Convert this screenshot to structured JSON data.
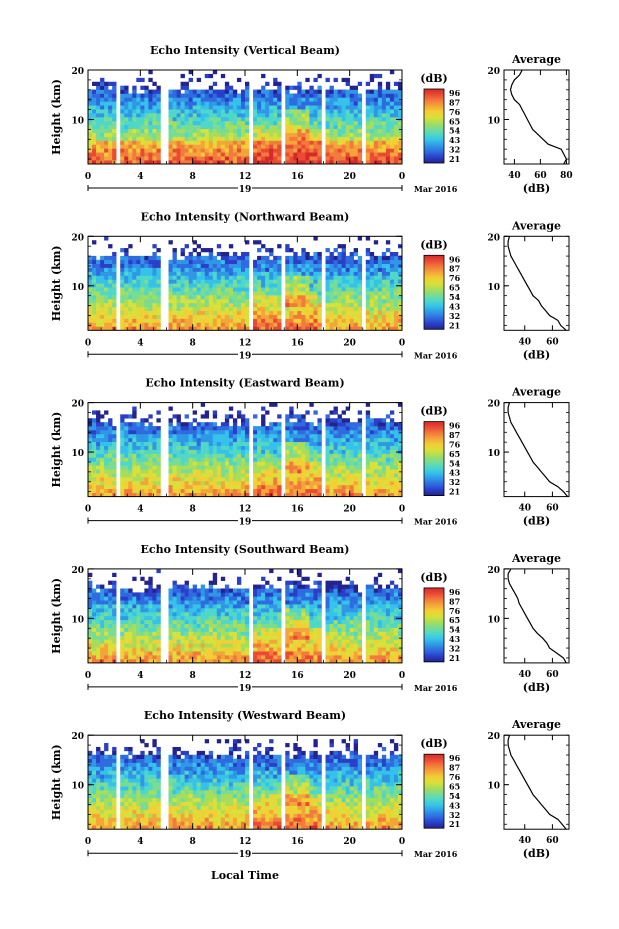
{
  "figure": {
    "month_label": "Mar 2016",
    "day_label": "19",
    "bottom_xlabel": "Local Time"
  },
  "colorbar": {
    "unit": "(dB)",
    "ticks": [
      "96",
      "87",
      "76",
      "65",
      "54",
      "43",
      "32",
      "21"
    ],
    "colors": [
      "#23238f",
      "#2a3fc8",
      "#2f6be0",
      "#2f97e6",
      "#35c2ea",
      "#4fd7c8",
      "#78dc92",
      "#a8dd5a",
      "#d8e03a",
      "#f2cf34",
      "#f4a53a",
      "#f27a3c",
      "#ea4a34",
      "#d42a2a"
    ]
  },
  "chart_data": [
    {
      "type": "heatmap",
      "title": "Echo Intensity (Vertical Beam)",
      "xlabel": "",
      "ylabel": "Height (km)",
      "xlim": [
        0,
        24
      ],
      "ylim": [
        1,
        20
      ],
      "xticks": [
        "0",
        "4",
        "8",
        "12",
        "16",
        "20",
        "0"
      ],
      "yticks": [
        "10",
        "20"
      ],
      "colorbar_range_db": [
        21,
        96
      ],
      "data_gaps_hours": [
        [
          2.2,
          2.5
        ],
        [
          5.5,
          6.1
        ],
        [
          12.3,
          12.5
        ],
        [
          14.8,
          15.1
        ],
        [
          18.0,
          18.3
        ],
        [
          21.0,
          21.3
        ]
      ],
      "profile": {
        "title": "Average",
        "xlabel": "(dB)",
        "ylabel": "",
        "xticks": [
          "40",
          "60",
          "80"
        ],
        "xlim": [
          32,
          82
        ],
        "ylim": [
          1,
          20
        ],
        "yticks": [
          "10",
          "20"
        ],
        "height_km": [
          1,
          2,
          3,
          4,
          5,
          6,
          7,
          8,
          9,
          10,
          11,
          12,
          13,
          14,
          15,
          16,
          17,
          18,
          19,
          20
        ],
        "value_db": [
          78,
          80,
          78,
          76,
          66,
          62,
          58,
          54,
          52,
          50,
          48,
          46,
          44,
          40,
          38,
          37,
          38,
          40,
          44,
          46
        ]
      }
    },
    {
      "type": "heatmap",
      "title": "Echo Intensity (Northward Beam)",
      "xlabel": "",
      "ylabel": "Height (km)",
      "xlim": [
        0,
        24
      ],
      "ylim": [
        1,
        20
      ],
      "xticks": [
        "0",
        "4",
        "8",
        "12",
        "16",
        "20",
        "0"
      ],
      "yticks": [
        "10",
        "20"
      ],
      "colorbar_range_db": [
        21,
        96
      ],
      "data_gaps_hours": [
        [
          2.2,
          2.5
        ],
        [
          5.5,
          6.1
        ],
        [
          12.3,
          12.5
        ],
        [
          14.8,
          15.1
        ],
        [
          18.0,
          18.3
        ],
        [
          21.0,
          21.3
        ]
      ],
      "profile": {
        "title": "Average",
        "xlabel": "(dB)",
        "ylabel": "",
        "xticks": [
          "40",
          "60"
        ],
        "xlim": [
          25,
          72
        ],
        "ylim": [
          1,
          20
        ],
        "yticks": [
          "10",
          "20"
        ],
        "height_km": [
          1,
          2,
          3,
          4,
          5,
          6,
          7,
          8,
          9,
          10,
          11,
          12,
          13,
          14,
          15,
          16,
          17,
          18,
          19,
          20
        ],
        "value_db": [
          70,
          66,
          64,
          58,
          55,
          52,
          50,
          46,
          44,
          42,
          40,
          38,
          36,
          34,
          32,
          30,
          29,
          28,
          28,
          29
        ]
      }
    },
    {
      "type": "heatmap",
      "title": "Echo Intensity (Eastward Beam)",
      "xlabel": "",
      "ylabel": "Height (km)",
      "xlim": [
        0,
        24
      ],
      "ylim": [
        1,
        20
      ],
      "xticks": [
        "0",
        "4",
        "8",
        "12",
        "16",
        "20",
        "0"
      ],
      "yticks": [
        "10",
        "20"
      ],
      "colorbar_range_db": [
        21,
        96
      ],
      "data_gaps_hours": [
        [
          2.2,
          2.5
        ],
        [
          5.5,
          6.1
        ],
        [
          12.3,
          12.5
        ],
        [
          14.8,
          15.1
        ],
        [
          18.0,
          18.3
        ],
        [
          21.0,
          21.3
        ]
      ],
      "profile": {
        "title": "Average",
        "xlabel": "(dB)",
        "ylabel": "",
        "xticks": [
          "40",
          "60"
        ],
        "xlim": [
          25,
          72
        ],
        "ylim": [
          1,
          20
        ],
        "yticks": [
          "10",
          "20"
        ],
        "height_km": [
          1,
          2,
          3,
          4,
          5,
          6,
          7,
          8,
          9,
          10,
          11,
          12,
          13,
          14,
          15,
          16,
          17,
          18,
          19,
          20
        ],
        "value_db": [
          71,
          68,
          64,
          58,
          55,
          52,
          49,
          46,
          44,
          42,
          40,
          38,
          36,
          34,
          32,
          30,
          29,
          28,
          28,
          29
        ]
      }
    },
    {
      "type": "heatmap",
      "title": "Echo Intensity (Southward Beam)",
      "xlabel": "",
      "ylabel": "Height (km)",
      "xlim": [
        0,
        24
      ],
      "ylim": [
        1,
        20
      ],
      "xticks": [
        "0",
        "4",
        "8",
        "12",
        "16",
        "20",
        "0"
      ],
      "yticks": [
        "10",
        "20"
      ],
      "colorbar_range_db": [
        21,
        96
      ],
      "data_gaps_hours": [
        [
          2.2,
          2.5
        ],
        [
          5.5,
          6.1
        ],
        [
          12.3,
          12.5
        ],
        [
          14.8,
          15.1
        ],
        [
          18.0,
          18.3
        ],
        [
          21.0,
          21.3
        ]
      ],
      "profile": {
        "title": "Average",
        "xlabel": "(dB)",
        "ylabel": "",
        "xticks": [
          "40",
          "60"
        ],
        "xlim": [
          25,
          72
        ],
        "ylim": [
          1,
          20
        ],
        "yticks": [
          "10",
          "20"
        ],
        "height_km": [
          1,
          2,
          3,
          4,
          5,
          6,
          7,
          8,
          9,
          10,
          11,
          12,
          13,
          14,
          15,
          16,
          17,
          18,
          19,
          20
        ],
        "value_db": [
          70,
          68,
          63,
          58,
          56,
          53,
          49,
          46,
          44,
          42,
          40,
          38,
          36,
          35,
          33,
          31,
          29,
          28,
          28,
          30
        ]
      }
    },
    {
      "type": "heatmap",
      "title": "Echo Intensity (Westward Beam)",
      "xlabel": "",
      "ylabel": "Height (km)",
      "xlim": [
        0,
        24
      ],
      "ylim": [
        1,
        20
      ],
      "xticks": [
        "0",
        "4",
        "8",
        "12",
        "16",
        "20",
        "0"
      ],
      "yticks": [
        "10",
        "20"
      ],
      "colorbar_range_db": [
        21,
        96
      ],
      "data_gaps_hours": [
        [
          2.2,
          2.5
        ],
        [
          5.5,
          6.1
        ],
        [
          12.3,
          12.5
        ],
        [
          14.8,
          15.1
        ],
        [
          18.0,
          18.3
        ],
        [
          21.0,
          21.3
        ]
      ],
      "profile": {
        "title": "Average",
        "xlabel": "(dB)",
        "ylabel": "",
        "xticks": [
          "40",
          "60"
        ],
        "xlim": [
          25,
          72
        ],
        "ylim": [
          1,
          20
        ],
        "yticks": [
          "10",
          "20"
        ],
        "height_km": [
          1,
          2,
          3,
          4,
          5,
          6,
          7,
          8,
          9,
          10,
          11,
          12,
          13,
          14,
          15,
          16,
          17,
          18,
          19,
          20
        ],
        "value_db": [
          70,
          67,
          64,
          58,
          55,
          52,
          49,
          46,
          44,
          42,
          40,
          38,
          36,
          34,
          32,
          30,
          29,
          28,
          28,
          29
        ]
      }
    }
  ]
}
